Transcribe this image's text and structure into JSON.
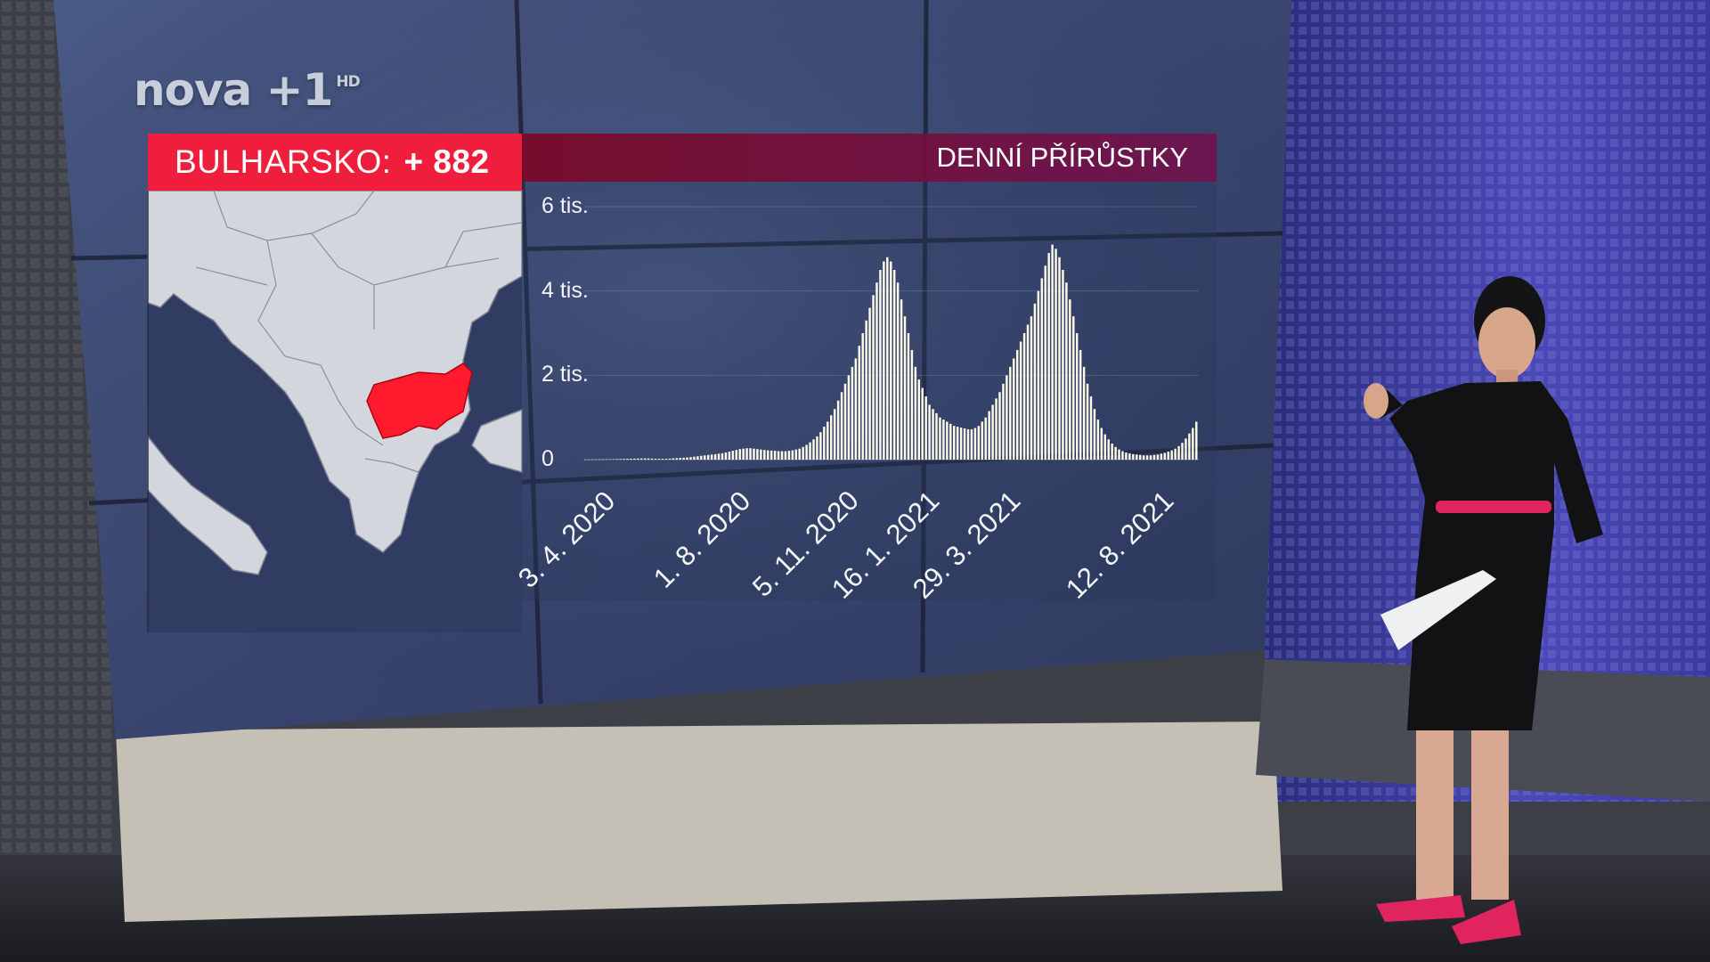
{
  "broadcast": {
    "channel_logo": "nova +1",
    "channel_logo_suffix": "HD"
  },
  "overlay": {
    "country_label": "BULHARSKO:",
    "country_value": "+ 882",
    "chart_title": "DENNÍ PŘÍRŮSTKY"
  },
  "map": {
    "highlight_country": "Bulgaria",
    "highlight_color": "#ff1a2e",
    "land_color": "#d3d6dc",
    "sea_color": "#303c62"
  },
  "chart_data": {
    "type": "bar",
    "title": "DENNÍ PŘÍRŮSTKY",
    "xlabel": "",
    "ylabel": "",
    "ylim": [
      0,
      6000
    ],
    "y_ticks": [
      0,
      2000,
      4000,
      6000
    ],
    "y_tick_labels": [
      "0",
      "2 tis.",
      "4 tis.",
      "6 tis."
    ],
    "x_tick_labels": [
      "3. 4. 2020",
      "1. 8. 2020",
      "5. 11. 2020",
      "16. 1. 2021",
      "29. 3. 2021",
      "12. 8. 2021"
    ],
    "x_range": [
      "2020-03-08",
      "2021-09-05"
    ],
    "grid": true,
    "bar_color": "#fffbe8",
    "series": [
      {
        "values": [
          2,
          3,
          4,
          5,
          6,
          7,
          8,
          10,
          12,
          14,
          15,
          18,
          20,
          22,
          24,
          26,
          28,
          30,
          28,
          25,
          22,
          20,
          20,
          22,
          25,
          30,
          35,
          40,
          45,
          50,
          60,
          70,
          80,
          90,
          100,
          110,
          120,
          130,
          140,
          150,
          170,
          190,
          210,
          230,
          250,
          260,
          270,
          270,
          260,
          250,
          240,
          230,
          220,
          215,
          210,
          200,
          200,
          200,
          210,
          220,
          240,
          260,
          300,
          350,
          410,
          480,
          550,
          650,
          780,
          900,
          1050,
          1200,
          1400,
          1600,
          1800,
          2000,
          2200,
          2400,
          2700,
          3000,
          3300,
          3600,
          3900,
          4200,
          4500,
          4700,
          4800,
          4700,
          4500,
          4200,
          3800,
          3400,
          3000,
          2600,
          2200,
          1900,
          1700,
          1500,
          1300,
          1200,
          1100,
          1000,
          950,
          900,
          850,
          800,
          780,
          760,
          740,
          720,
          720,
          750,
          800,
          900,
          1000,
          1150,
          1300,
          1450,
          1600,
          1800,
          2000,
          2200,
          2400,
          2600,
          2800,
          3000,
          3200,
          3400,
          3700,
          4000,
          4300,
          4600,
          4900,
          5100,
          5000,
          4800,
          4500,
          4200,
          3800,
          3400,
          3000,
          2600,
          2200,
          1800,
          1500,
          1200,
          950,
          750,
          600,
          480,
          380,
          300,
          240,
          200,
          170,
          150,
          130,
          120,
          110,
          100,
          100,
          100,
          110,
          120,
          140,
          160,
          190,
          220,
          260,
          320,
          400,
          500,
          620,
          750,
          900
        ]
      }
    ]
  }
}
